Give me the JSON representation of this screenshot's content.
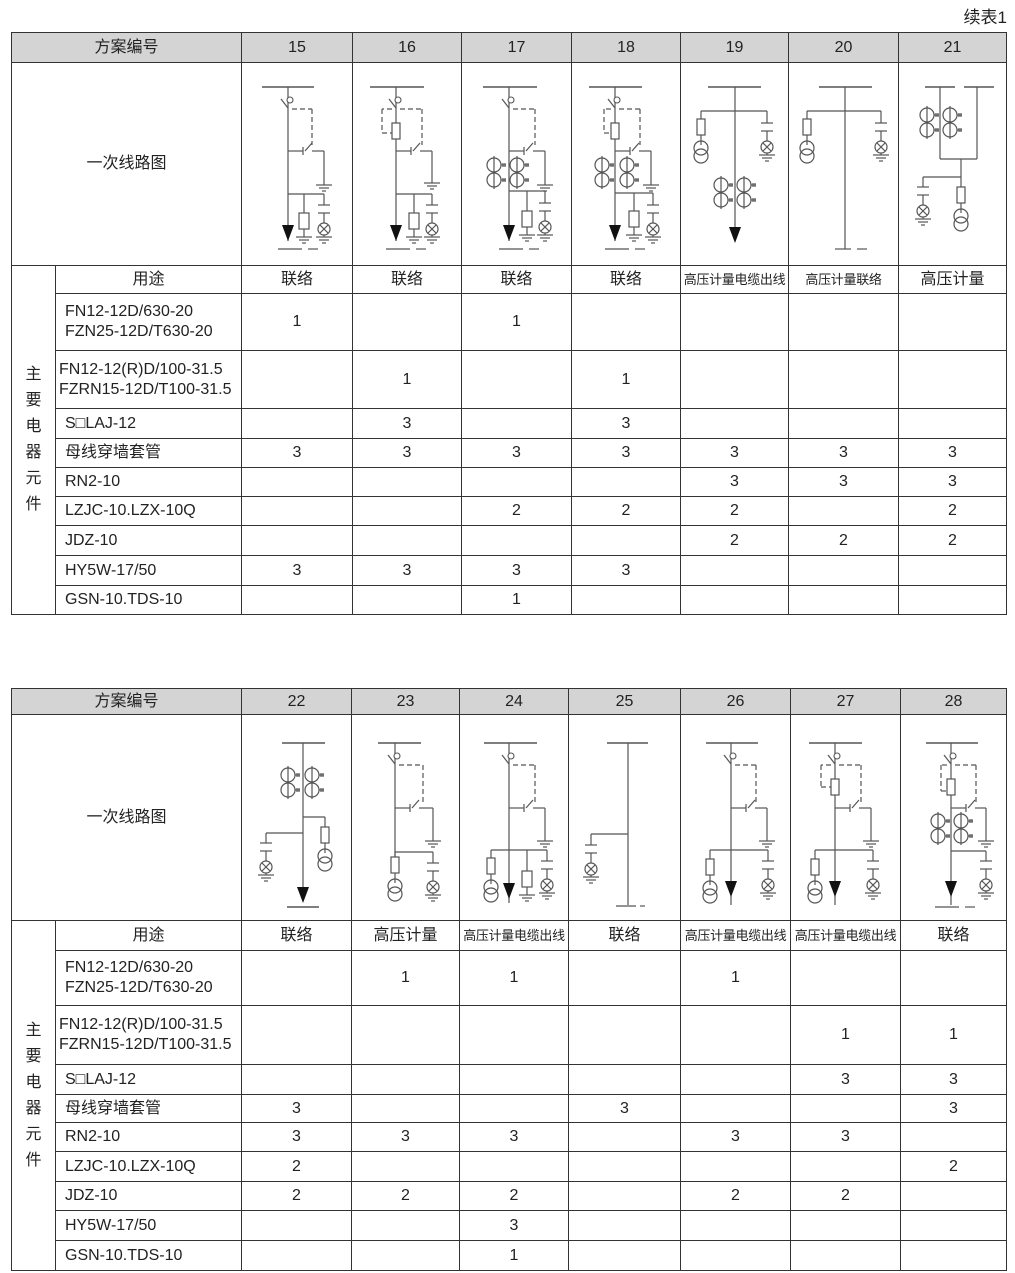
{
  "caption": "续表1",
  "tables": [
    {
      "scheme_label": "方案编号",
      "diagram_label": "一次线路图",
      "group_label": [
        "主",
        "要",
        "电",
        "器",
        "元",
        "件"
      ],
      "usage_label": "用途",
      "schemes": [
        "15",
        "16",
        "17",
        "18",
        "19",
        "20",
        "21"
      ],
      "usage": [
        "联络",
        "联络",
        "联络",
        "联络",
        "高压计量电缆出线",
        "高压计量联络",
        "高压计量"
      ],
      "components": [
        {
          "name": [
            "FN12-12D/630-20",
            "FZN25-12D/T630-20"
          ],
          "values": [
            "1",
            "",
            "1",
            "",
            "",
            "",
            ""
          ]
        },
        {
          "name": [
            "FN12-12(R)D/100-31.5",
            "FZRN15-12D/T100-31.5"
          ],
          "values": [
            "",
            "1",
            "",
            "1",
            "",
            "",
            ""
          ]
        },
        {
          "name": [
            "S□LAJ-12"
          ],
          "values": [
            "",
            "3",
            "",
            "3",
            "",
            "",
            ""
          ]
        },
        {
          "name": [
            "母线穿墙套管"
          ],
          "values": [
            "3",
            "3",
            "3",
            "3",
            "3",
            "3",
            "3"
          ]
        },
        {
          "name": [
            "RN2-10"
          ],
          "values": [
            "",
            "",
            "",
            "",
            "3",
            "3",
            "3"
          ]
        },
        {
          "name": [
            "LZJC-10.LZX-10Q"
          ],
          "values": [
            "",
            "",
            "2",
            "2",
            "2",
            "",
            "2"
          ]
        },
        {
          "name": [
            "JDZ-10"
          ],
          "values": [
            "",
            "",
            "",
            "",
            "2",
            "2",
            "2"
          ]
        },
        {
          "name": [
            "HY5W-17/50"
          ],
          "values": [
            "3",
            "3",
            "3",
            "3",
            "",
            "",
            ""
          ]
        },
        {
          "name": [
            "GSN-10.TDS-10"
          ],
          "values": [
            "",
            "",
            "1",
            "",
            "",
            "",
            ""
          ]
        }
      ]
    },
    {
      "scheme_label": "方案编号",
      "diagram_label": "一次线路图",
      "group_label": [
        "主",
        "要",
        "电",
        "器",
        "元",
        "件"
      ],
      "usage_label": "用途",
      "schemes": [
        "22",
        "23",
        "24",
        "25",
        "26",
        "27",
        "28"
      ],
      "usage": [
        "联络",
        "高压计量",
        "高压计量电缆出线",
        "联络",
        "高压计量电缆出线",
        "高压计量电缆出线",
        "联络"
      ],
      "components": [
        {
          "name": [
            "FN12-12D/630-20",
            "FZN25-12D/T630-20"
          ],
          "values": [
            "",
            "1",
            "1",
            "",
            "1",
            "",
            ""
          ]
        },
        {
          "name": [
            "FN12-12(R)D/100-31.5",
            "FZRN15-12D/T100-31.5"
          ],
          "values": [
            "",
            "",
            "",
            "",
            "",
            "1",
            "1"
          ]
        },
        {
          "name": [
            "S□LAJ-12"
          ],
          "values": [
            "",
            "",
            "",
            "",
            "",
            "3",
            "3"
          ]
        },
        {
          "name": [
            "母线穿墙套管"
          ],
          "values": [
            "3",
            "",
            "",
            "3",
            "",
            "",
            "3"
          ]
        },
        {
          "name": [
            "RN2-10"
          ],
          "values": [
            "3",
            "3",
            "3",
            "",
            "3",
            "3",
            ""
          ]
        },
        {
          "name": [
            "LZJC-10.LZX-10Q"
          ],
          "values": [
            "2",
            "",
            "",
            "",
            "",
            "",
            "2"
          ]
        },
        {
          "name": [
            "JDZ-10"
          ],
          "values": [
            "2",
            "2",
            "2",
            "",
            "2",
            "2",
            ""
          ]
        },
        {
          "name": [
            "HY5W-17/50"
          ],
          "values": [
            "",
            "",
            "3",
            "",
            "",
            "",
            ""
          ]
        },
        {
          "name": [
            "GSN-10.TDS-10"
          ],
          "values": [
            "",
            "",
            "1",
            "",
            "",
            "",
            ""
          ]
        }
      ]
    }
  ],
  "colors": {
    "header_bg": "#d4d4d4",
    "border": "#333333",
    "line": "#555555"
  }
}
